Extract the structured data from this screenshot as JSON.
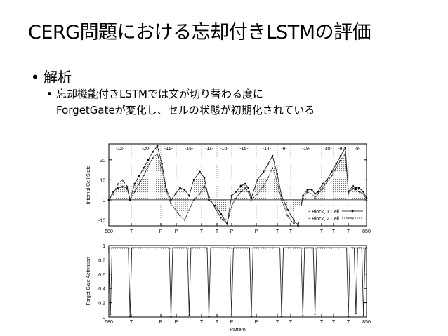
{
  "slide": {
    "title": "CERG問題における忘却付きLSTMの評価",
    "bullet1": "解析",
    "bullet2_line1": "忘却機能付きLSTMでは文が切り替わる度に",
    "bullet2_line2": "ForgetGateが変化し、セルの状態が初期化されている",
    "bullet_char": "•"
  },
  "chart_data": [
    {
      "type": "line",
      "ylabel": "Internal Cell State",
      "xlim": [
        680,
        850
      ],
      "ylim": [
        -13,
        28
      ],
      "yticks": [
        -10,
        0,
        10,
        20
      ],
      "x_tick_labels": [
        "680",
        "T",
        "P",
        "P",
        "T",
        "T",
        "P",
        "P",
        "T",
        "T",
        "T",
        "T",
        "T",
        "850"
      ],
      "segment_labels": [
        "-12-",
        "-20-",
        "-11-",
        "-15-",
        "-11-",
        "-10-",
        "-15-",
        "-14-",
        "-9-",
        "-19-",
        "-10-",
        "-9-",
        "-9-"
      ],
      "legend": [
        "3.Block, 1.Cell",
        "3.Block, 2.Cell"
      ],
      "legend_position": "bottom-right",
      "series": [
        {
          "name": "3.Block, 1.Cell",
          "values": [
            [
              680,
              0
            ],
            [
              683,
              4
            ],
            [
              686,
              6
            ],
            [
              689,
              6.5
            ],
            [
              692,
              6
            ],
            [
              694,
              0
            ],
            [
              697,
              8
            ],
            [
              700,
              12
            ],
            [
              703,
              16
            ],
            [
              706,
              20
            ],
            [
              709,
              24
            ],
            [
              712,
              27
            ],
            [
              715,
              18
            ],
            [
              718,
              5
            ],
            [
              721,
              0
            ],
            [
              724,
              3
            ],
            [
              727,
              6
            ],
            [
              730,
              5
            ],
            [
              733,
              2
            ],
            [
              736,
              10
            ],
            [
              740,
              14
            ],
            [
              743,
              11
            ],
            [
              746,
              0
            ],
            [
              750,
              -3
            ],
            [
              754,
              -7
            ],
            [
              758,
              -12
            ],
            [
              761,
              2
            ],
            [
              764,
              4
            ],
            [
              767,
              7
            ],
            [
              770,
              8
            ],
            [
              772,
              6
            ],
            [
              774,
              1
            ],
            [
              778,
              10
            ],
            [
              782,
              14
            ],
            [
              785,
              18
            ],
            [
              788,
              22
            ],
            [
              791,
              13
            ],
            [
              794,
              2
            ],
            [
              798,
              -5
            ],
            [
              802,
              -10
            ],
            [
              805,
              -13
            ],
            [
              808,
              2
            ],
            [
              811,
              5
            ],
            [
              814,
              5
            ],
            [
              816,
              3
            ],
            [
              818,
              4
            ],
            [
              821,
              8
            ],
            [
              824,
              10
            ],
            [
              827,
              14
            ],
            [
              830,
              18
            ],
            [
              833,
              22
            ],
            [
              836,
              26
            ],
            [
              838,
              4
            ],
            [
              841,
              7
            ],
            [
              843,
              6
            ],
            [
              845,
              6
            ],
            [
              848,
              4
            ],
            [
              850,
              1
            ]
          ]
        },
        {
          "name": "3.Block, 2.Cell",
          "values": [
            [
              680,
              0
            ],
            [
              683,
              3
            ],
            [
              686,
              8
            ],
            [
              689,
              10
            ],
            [
              692,
              7
            ],
            [
              694,
              0
            ],
            [
              697,
              4
            ],
            [
              700,
              8
            ],
            [
              703,
              12
            ],
            [
              706,
              17
            ],
            [
              709,
              21
            ],
            [
              712,
              23
            ],
            [
              715,
              15
            ],
            [
              718,
              4
            ],
            [
              721,
              -2
            ],
            [
              724,
              -5
            ],
            [
              727,
              -8
            ],
            [
              730,
              -10
            ],
            [
              733,
              -5
            ],
            [
              736,
              0
            ],
            [
              740,
              3
            ],
            [
              743,
              7
            ],
            [
              746,
              2
            ],
            [
              750,
              -4
            ],
            [
              754,
              -9
            ],
            [
              758,
              -12
            ],
            [
              761,
              -3
            ],
            [
              764,
              1
            ],
            [
              767,
              4
            ],
            [
              770,
              6
            ],
            [
              772,
              4
            ],
            [
              774,
              0
            ],
            [
              778,
              3
            ],
            [
              782,
              7
            ],
            [
              785,
              11
            ],
            [
              788,
              16
            ],
            [
              791,
              9
            ],
            [
              794,
              0
            ],
            [
              798,
              -8
            ],
            [
              802,
              -12
            ],
            [
              805,
              -10
            ],
            [
              808,
              1
            ],
            [
              811,
              4
            ],
            [
              814,
              3
            ],
            [
              816,
              1
            ],
            [
              818,
              3
            ],
            [
              821,
              6
            ],
            [
              824,
              9
            ],
            [
              827,
              12
            ],
            [
              830,
              16
            ],
            [
              833,
              20
            ],
            [
              836,
              23
            ],
            [
              838,
              3
            ],
            [
              841,
              6
            ],
            [
              843,
              5
            ],
            [
              845,
              4
            ],
            [
              848,
              3
            ],
            [
              850,
              0
            ]
          ]
        }
      ]
    },
    {
      "type": "line",
      "ylabel": "Forget Gate Activation",
      "xlabel": "Pattern",
      "xlim": [
        680,
        850
      ],
      "ylim": [
        0,
        1
      ],
      "yticks": [
        0,
        0.2,
        0.4,
        0.6,
        0.8,
        1
      ],
      "x_tick_labels": [
        "680",
        "T",
        "P",
        "P",
        "T",
        "T",
        "P",
        "P",
        "T",
        "T",
        "T",
        "T",
        "T",
        "850"
      ],
      "dips": [
        {
          "x": 681,
          "value": 0.03
        },
        {
          "x": 694,
          "value": 0.0
        },
        {
          "x": 721,
          "value": 0.0
        },
        {
          "x": 733,
          "value": 0.02
        },
        {
          "x": 746,
          "value": 0.0
        },
        {
          "x": 761,
          "value": 0.03
        },
        {
          "x": 774,
          "value": 0.0
        },
        {
          "x": 794,
          "value": 0.0
        },
        {
          "x": 808,
          "value": 0.02
        },
        {
          "x": 816,
          "value": 0.03
        },
        {
          "x": 838,
          "value": 0.0
        },
        {
          "x": 843,
          "value": 0.05
        },
        {
          "x": 848,
          "value": 0.02
        }
      ],
      "baseline": 0.97
    }
  ]
}
